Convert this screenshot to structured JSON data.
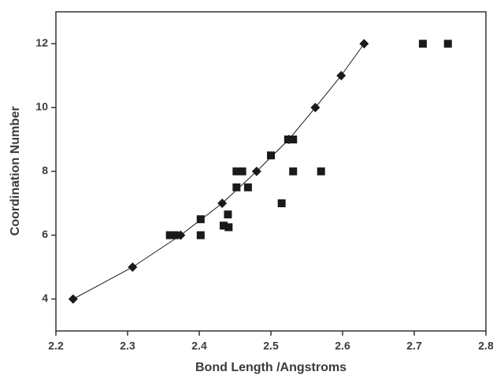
{
  "chart_data": {
    "type": "scatter",
    "xlabel": "Bond Length /Angstroms",
    "ylabel": "Coordination Number",
    "xlim": [
      2.2,
      2.8
    ],
    "ylim": [
      3,
      13
    ],
    "xticks": [
      2.2,
      2.3,
      2.4,
      2.5,
      2.6,
      2.7,
      2.8
    ],
    "yticks": [
      4,
      6,
      8,
      10,
      12
    ],
    "series": [
      {
        "color": "#1a1a1a",
        "marker": "diamond",
        "line": true,
        "x": [
          2.224,
          2.307,
          2.374,
          2.432,
          2.48,
          2.525,
          2.562,
          2.598,
          2.63
        ],
        "y": [
          4,
          5,
          6,
          7,
          8,
          9,
          10,
          11,
          12
        ]
      },
      {
        "color": "#1a1a1a",
        "marker": "square",
        "line": false,
        "x": [
          2.359,
          2.366,
          2.402,
          2.402,
          2.434,
          2.44,
          2.441,
          2.452,
          2.452,
          2.46,
          2.468,
          2.5,
          2.515,
          2.524,
          2.531,
          2.531,
          2.57,
          2.712,
          2.747
        ],
        "y": [
          6,
          6,
          6,
          6.5,
          6.3,
          6.65,
          6.25,
          7.5,
          8,
          8,
          7.5,
          8.5,
          7,
          9,
          9,
          8,
          8,
          12,
          12
        ]
      }
    ]
  }
}
